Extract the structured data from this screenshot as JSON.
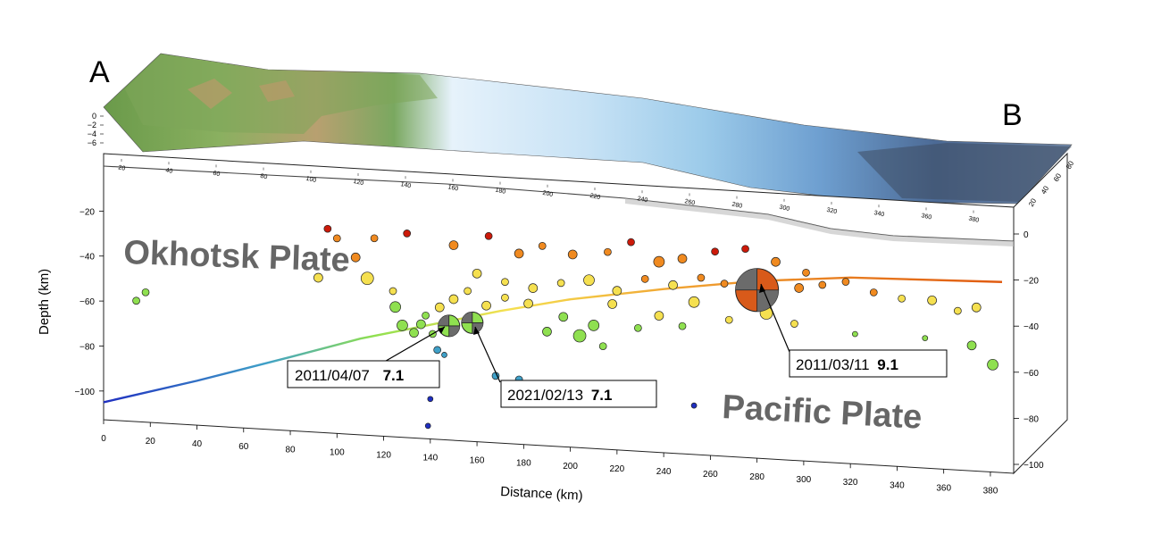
{
  "corner_labels": {
    "left": "A",
    "right": "B"
  },
  "plate_labels": {
    "upper": "Okhotsk Plate",
    "lower": "Pacific Plate"
  },
  "callouts": [
    {
      "date": "2011/04/07",
      "mag": "7.1"
    },
    {
      "date": "2021/02/13",
      "mag": "7.1"
    },
    {
      "date": "2011/03/11",
      "mag": "9.1"
    }
  ],
  "chart_data": {
    "type": "scatter",
    "title": "",
    "xlabel": "Distance (km)",
    "ylabel": "Depth (km)",
    "xlim": [
      0,
      385
    ],
    "ylim": [
      -108,
      0
    ],
    "x_ticks": [
      0,
      20,
      40,
      60,
      80,
      100,
      120,
      140,
      160,
      180,
      200,
      220,
      240,
      260,
      280,
      300,
      320,
      340,
      360,
      380
    ],
    "y_ticks": [
      -20,
      -40,
      -60,
      -80,
      -100
    ],
    "y_tick_labels": [
      "−20",
      "−40",
      "−60",
      "−80",
      "−100"
    ],
    "right_depth_ticks": [
      0,
      -20,
      -40,
      -60,
      -80,
      -100
    ],
    "right_depth_tick_labels": [
      "0",
      "−20",
      "−40",
      "−60",
      "−80",
      "−100"
    ],
    "top_elevation_ticks": [
      "0",
      "−2",
      "−4",
      "−6"
    ],
    "back_distance_ticks": [
      "20",
      "40",
      "60",
      "80",
      "100",
      "120",
      "140",
      "160",
      "180",
      "200",
      "220",
      "240",
      "260",
      "280",
      "300",
      "320",
      "340",
      "360",
      "380"
    ],
    "back_right_ticks": [
      "80",
      "60",
      "40",
      "20"
    ],
    "colors": {
      "deep": "#1f2fc0",
      "mid_deep": "#3fa0c8",
      "mid": "#8fe050",
      "shallow_mid": "#f5e050",
      "shallow": "#f08a20",
      "very_shallow": "#cc1a0a",
      "mechanism": "#d85a1a",
      "mechanism_grey": "#6b6b6b"
    },
    "slab_interface": [
      {
        "x": 0,
        "y": -105
      },
      {
        "x": 40,
        "y": -93
      },
      {
        "x": 80,
        "y": -80
      },
      {
        "x": 110,
        "y": -70
      },
      {
        "x": 140,
        "y": -62
      },
      {
        "x": 170,
        "y": -54
      },
      {
        "x": 200,
        "y": -47
      },
      {
        "x": 240,
        "y": -40
      },
      {
        "x": 280,
        "y": -34
      },
      {
        "x": 320,
        "y": -30
      },
      {
        "x": 385,
        "y": -28
      }
    ],
    "mainshocks": [
      {
        "x": 148,
        "y": -62,
        "mag": 7.1,
        "date": "2011/04/07"
      },
      {
        "x": 158,
        "y": -60,
        "mag": 7.1,
        "date": "2021/02/13"
      },
      {
        "x": 280,
        "y": -38,
        "mag": 9.1,
        "date": "2011/03/11"
      }
    ],
    "events": [
      {
        "x": 14,
        "y": -59,
        "s": 4
      },
      {
        "x": 18,
        "y": -55,
        "s": 4
      },
      {
        "x": 92,
        "y": -44,
        "s": 5
      },
      {
        "x": 113,
        "y": -43,
        "s": 7
      },
      {
        "x": 125,
        "y": -55,
        "s": 6
      },
      {
        "x": 128,
        "y": -63,
        "s": 6
      },
      {
        "x": 133,
        "y": -66,
        "s": 5
      },
      {
        "x": 136,
        "y": -62,
        "s": 5
      },
      {
        "x": 141,
        "y": -66,
        "s": 4
      },
      {
        "x": 143,
        "y": -73,
        "s": 4
      },
      {
        "x": 146,
        "y": -75,
        "s": 3
      },
      {
        "x": 140,
        "y": -95,
        "s": 3
      },
      {
        "x": 139,
        "y": -107,
        "s": 3
      },
      {
        "x": 168,
        "y": -83,
        "s": 4
      },
      {
        "x": 178,
        "y": -84,
        "s": 4
      },
      {
        "x": 253,
        "y": -91,
        "s": 3
      },
      {
        "x": 190,
        "y": -62,
        "s": 5
      },
      {
        "x": 197,
        "y": -55,
        "s": 5
      },
      {
        "x": 204,
        "y": -63,
        "s": 7
      },
      {
        "x": 210,
        "y": -58,
        "s": 6
      },
      {
        "x": 214,
        "y": -67,
        "s": 4
      },
      {
        "x": 218,
        "y": -48,
        "s": 5
      },
      {
        "x": 229,
        "y": -58,
        "s": 4
      },
      {
        "x": 238,
        "y": -52,
        "s": 5
      },
      {
        "x": 248,
        "y": -56,
        "s": 4
      },
      {
        "x": 253,
        "y": -45,
        "s": 6
      },
      {
        "x": 268,
        "y": -52,
        "s": 4
      },
      {
        "x": 284,
        "y": -48,
        "s": 7
      },
      {
        "x": 296,
        "y": -52,
        "s": 4
      },
      {
        "x": 322,
        "y": -55,
        "s": 3
      },
      {
        "x": 352,
        "y": -55,
        "s": 3
      },
      {
        "x": 372,
        "y": -57,
        "s": 5
      },
      {
        "x": 381,
        "y": -65,
        "s": 6
      },
      {
        "x": 116,
        "y": -25,
        "s": 4
      },
      {
        "x": 130,
        "y": -22,
        "s": 4
      },
      {
        "x": 150,
        "y": -26,
        "s": 5
      },
      {
        "x": 165,
        "y": -21,
        "s": 4
      },
      {
        "x": 178,
        "y": -28,
        "s": 5
      },
      {
        "x": 188,
        "y": -24,
        "s": 4
      },
      {
        "x": 201,
        "y": -27,
        "s": 5
      },
      {
        "x": 216,
        "y": -25,
        "s": 4
      },
      {
        "x": 226,
        "y": -20,
        "s": 4
      },
      {
        "x": 238,
        "y": -28,
        "s": 6
      },
      {
        "x": 248,
        "y": -26,
        "s": 5
      },
      {
        "x": 262,
        "y": -22,
        "s": 4
      },
      {
        "x": 275,
        "y": -20,
        "s": 4
      },
      {
        "x": 288,
        "y": -25,
        "s": 5
      },
      {
        "x": 301,
        "y": -29,
        "s": 4
      },
      {
        "x": 318,
        "y": -32,
        "s": 4
      },
      {
        "x": 330,
        "y": -36,
        "s": 4
      },
      {
        "x": 342,
        "y": -38,
        "s": 4
      },
      {
        "x": 355,
        "y": -38,
        "s": 5
      },
      {
        "x": 366,
        "y": -42,
        "s": 4
      },
      {
        "x": 374,
        "y": -40,
        "s": 5
      },
      {
        "x": 160,
        "y": -38,
        "s": 5
      },
      {
        "x": 172,
        "y": -41,
        "s": 4
      },
      {
        "x": 184,
        "y": -43,
        "s": 5
      },
      {
        "x": 196,
        "y": -40,
        "s": 4
      },
      {
        "x": 208,
        "y": -38,
        "s": 6
      },
      {
        "x": 220,
        "y": -42,
        "s": 5
      },
      {
        "x": 232,
        "y": -36,
        "s": 4
      },
      {
        "x": 244,
        "y": -38,
        "s": 5
      },
      {
        "x": 256,
        "y": -34,
        "s": 4
      },
      {
        "x": 266,
        "y": -36,
        "s": 4
      },
      {
        "x": 298,
        "y": -36,
        "s": 5
      },
      {
        "x": 308,
        "y": -34,
        "s": 4
      },
      {
        "x": 150,
        "y": -50,
        "s": 5
      },
      {
        "x": 156,
        "y": -46,
        "s": 4
      },
      {
        "x": 164,
        "y": -52,
        "s": 5
      },
      {
        "x": 172,
        "y": -48,
        "s": 4
      },
      {
        "x": 182,
        "y": -50,
        "s": 5
      },
      {
        "x": 138,
        "y": -58,
        "s": 4
      },
      {
        "x": 144,
        "y": -54,
        "s": 5
      },
      {
        "x": 124,
        "y": -48,
        "s": 4
      },
      {
        "x": 108,
        "y": -34,
        "s": 5
      },
      {
        "x": 100,
        "y": -26,
        "s": 4
      },
      {
        "x": 96,
        "y": -22,
        "s": 4
      }
    ]
  }
}
